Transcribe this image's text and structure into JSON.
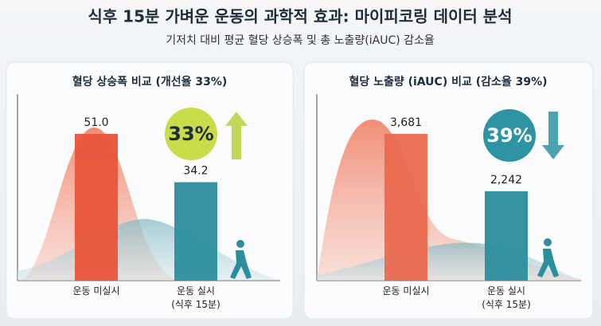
{
  "header": {
    "title": "식후 15분 가벼운 운동의 과학적 효과: 마이피코링 데이터 분석",
    "subtitle": "기저치 대비 평균 혈당 상승폭 및 총 노출량(iAUC) 감소율"
  },
  "chart_data": [
    {
      "type": "bar",
      "title": "혈당 상승폭 비교 (개선율 33%)",
      "categories": [
        "운동 미실시",
        "운동 실시\n(식후 15분)"
      ],
      "values": [
        51.0,
        34.2
      ],
      "value_labels": [
        "51.0",
        "34.2"
      ],
      "colors": [
        "#e9553b",
        "#2b8e9c"
      ],
      "badge": "33%",
      "badge_color": "#c9dc4a",
      "badge_direction": "up"
    },
    {
      "type": "bar",
      "title": "혈당 노출량 (iAUC) 비교 (감소율 39%)",
      "categories": [
        "운동 미실시",
        "운동 실시\n(식후 15분)"
      ],
      "values": [
        3681,
        2242
      ],
      "value_labels": [
        "3,681",
        "2,242"
      ],
      "colors": [
        "#ea6a4f",
        "#2b8e9c"
      ],
      "badge": "39%",
      "badge_color": "#2e93a3",
      "badge_direction": "down"
    }
  ]
}
